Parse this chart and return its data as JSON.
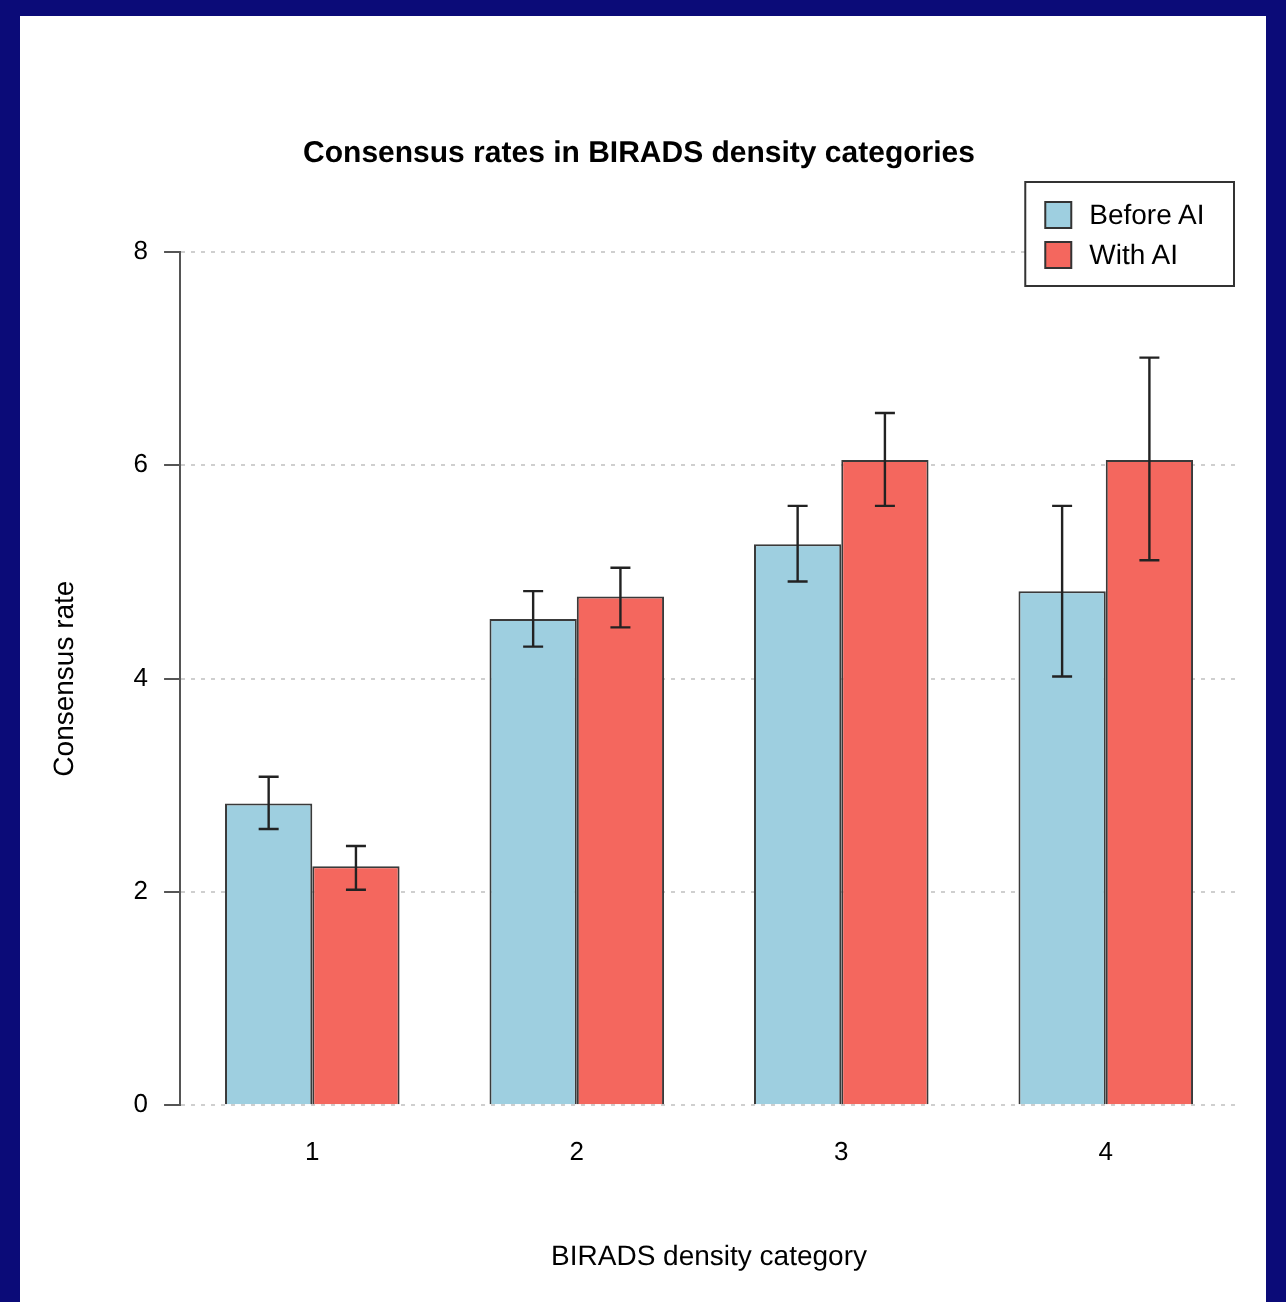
{
  "chart_data": {
    "type": "bar",
    "title": "Consensus rates in BIRADS density categories",
    "xlabel": "BIRADS density category",
    "ylabel": "Consensus rate",
    "categories": [
      "1",
      "2",
      "3",
      "4"
    ],
    "series": [
      {
        "name": "Before AI",
        "color": "#9ecfe0",
        "values": [
          2.83,
          4.56,
          5.26,
          4.82
        ],
        "errors": [
          [
            2.59,
            3.08
          ],
          [
            4.3,
            4.82
          ],
          [
            4.91,
            5.62
          ],
          [
            4.02,
            5.62
          ]
        ]
      },
      {
        "name": "With AI",
        "color": "#f4675e",
        "values": [
          2.24,
          4.77,
          6.05,
          6.05
        ],
        "errors": [
          [
            2.02,
            2.43
          ],
          [
            4.48,
            5.04
          ],
          [
            5.62,
            6.49
          ],
          [
            5.11,
            7.01
          ]
        ]
      }
    ],
    "ylim": [
      0,
      8
    ],
    "yticks": [
      0,
      2,
      4,
      6,
      8
    ],
    "grid": "y",
    "legend": "top right"
  }
}
